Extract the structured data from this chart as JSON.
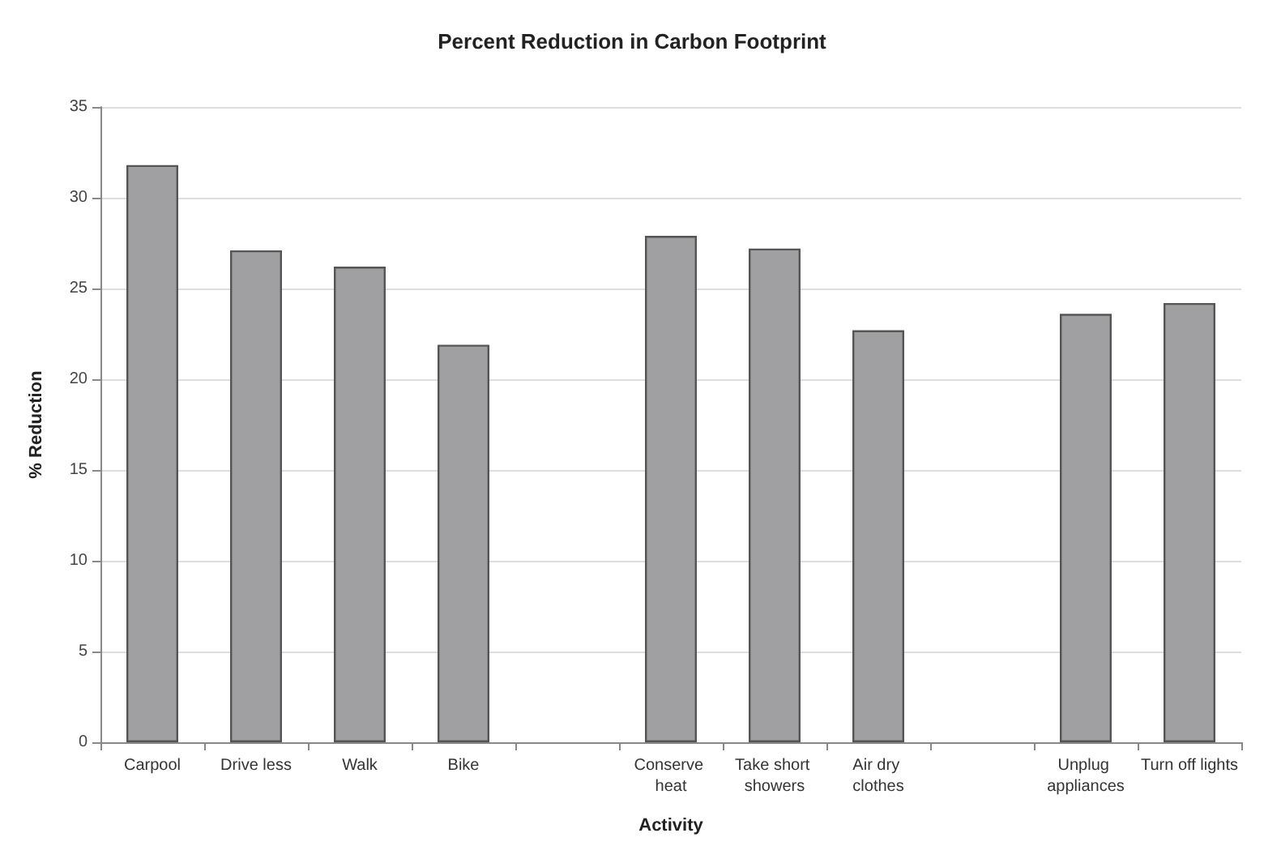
{
  "chart_data": {
    "type": "bar",
    "title": "Percent Reduction in Carbon Footprint",
    "xlabel": "Activity",
    "ylabel": "% Reduction",
    "categories": [
      "Carpool",
      "Drive less",
      "Walk",
      "Bike",
      null,
      "Conserve heat",
      "Take short showers",
      "Air dry clothes",
      null,
      "Unplug appliances",
      "Turn off lights"
    ],
    "values": [
      31.8,
      27.1,
      26.2,
      21.9,
      null,
      27.9,
      27.2,
      22.7,
      null,
      23.6,
      24.2
    ],
    "color": "#a0a0a2",
    "ylim": [
      0,
      35
    ],
    "yticks": [
      0,
      5,
      10,
      15,
      20,
      25,
      30,
      35
    ],
    "grid": "y"
  }
}
